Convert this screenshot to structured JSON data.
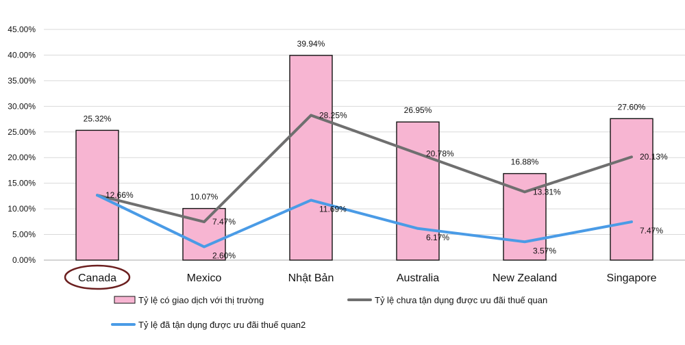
{
  "chart_data": {
    "type": "bar+line",
    "categories": [
      "Canada",
      "Mexico",
      "Nhật Bản",
      "Australia",
      "New Zealand",
      "Singapore"
    ],
    "ylim": [
      0,
      45
    ],
    "yticks": [
      "0.00%",
      "5.00%",
      "10.00%",
      "15.00%",
      "20.00%",
      "25.00%",
      "30.00%",
      "35.00%",
      "40.00%",
      "45.00%"
    ],
    "grid": true,
    "highlighted_category": "Canada",
    "series": [
      {
        "name": "Tỷ lệ có giao dịch với thị trường",
        "kind": "bar",
        "color": "#f7b5d2",
        "values": [
          25.32,
          10.07,
          39.94,
          26.95,
          16.88,
          27.6
        ],
        "labels": [
          "25.32%",
          "10.07%",
          "39.94%",
          "26.95%",
          "16.88%",
          "27.60%"
        ]
      },
      {
        "name": "Tỷ lệ chưa tận dụng được ưu đãi thuế quan",
        "kind": "line",
        "color": "#6f6f6f",
        "values": [
          12.66,
          7.47,
          28.25,
          20.78,
          13.31,
          20.13
        ],
        "labels": [
          "12.66%",
          "7.47%",
          "28.25%",
          "20.78%",
          "13.31%",
          "20.13%"
        ]
      },
      {
        "name": "Tỷ lệ đã tận dụng được ưu đãi thuế quan2",
        "kind": "line",
        "color": "#4a9be6",
        "values": [
          12.66,
          2.6,
          11.69,
          6.17,
          3.57,
          7.47
        ],
        "labels": [
          "",
          "2.60%",
          "11.69%",
          "6.17%",
          "3.57%",
          "7.47%"
        ]
      }
    ],
    "highlight_color": "#6b1f1f"
  }
}
